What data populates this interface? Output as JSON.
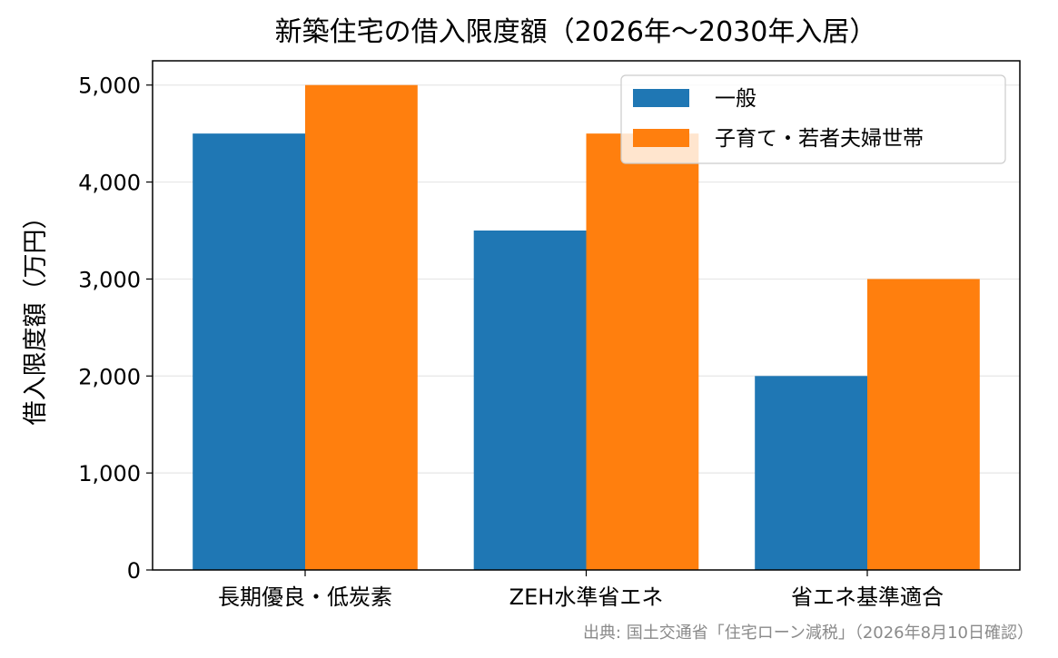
{
  "chart_data": {
    "type": "bar",
    "title": "新築住宅の借入限度額（2026年〜2030年入居）",
    "xlabel": "",
    "ylabel": "借入限度額（万円）",
    "categories": [
      "長期優良・低炭素",
      "ZEH水準省エネ",
      "省エネ基準適合"
    ],
    "series": [
      {
        "name": "一般",
        "values": [
          4500,
          3500,
          2000
        ],
        "color": "#1f77b4"
      },
      {
        "name": "子育て・若者夫婦世帯",
        "values": [
          5000,
          4500,
          3000
        ],
        "color": "#ff7f0e"
      }
    ],
    "ylim": [
      0,
      5250
    ],
    "yticks": [
      0,
      1000,
      2000,
      3000,
      4000,
      5000
    ],
    "ytick_labels": [
      "0",
      "1,000",
      "2,000",
      "3,000",
      "4,000",
      "5,000"
    ],
    "grid": "horizontal",
    "legend_position": "top-right",
    "source": "出典: 国土交通省「住宅ローン減税」（2026年8月10日確認）"
  }
}
